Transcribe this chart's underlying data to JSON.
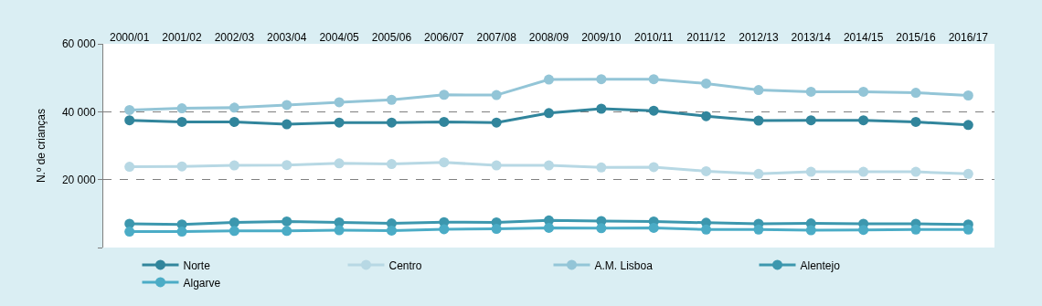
{
  "chart_data": {
    "type": "line",
    "ylabel": "N.º de crianças",
    "categories": [
      "2000/01",
      "2001/02",
      "2002/03",
      "2003/04",
      "2004/05",
      "2005/06",
      "2006/07",
      "2007/08",
      "2008/09",
      "2009/10",
      "2010/11",
      "2011/12",
      "2012/13",
      "2013/14",
      "2014/15",
      "2015/16",
      "2016/17"
    ],
    "series": [
      {
        "name": "Norte",
        "color": "#31859c",
        "values": [
          37500,
          37000,
          37000,
          36300,
          36800,
          36800,
          37000,
          36800,
          39600,
          40900,
          40300,
          38700,
          37400,
          37500,
          37500,
          37000,
          36100
        ]
      },
      {
        "name": "Centro",
        "color": "#b7d8e4",
        "values": [
          23800,
          23900,
          24200,
          24300,
          24800,
          24600,
          25100,
          24200,
          24200,
          23600,
          23700,
          22500,
          21700,
          22300,
          22300,
          22300,
          21700
        ]
      },
      {
        "name": "A.M. Lisboa",
        "color": "#93c5d7",
        "values": [
          40500,
          41000,
          41200,
          42000,
          42800,
          43500,
          45000,
          44900,
          49500,
          49600,
          49600,
          48300,
          46400,
          45900,
          45900,
          45600,
          44800
        ]
      },
      {
        "name": "Alentejo",
        "color": "#3c97ae",
        "values": [
          7000,
          6800,
          7400,
          7700,
          7400,
          7100,
          7500,
          7400,
          8000,
          7800,
          7700,
          7300,
          7000,
          7100,
          7000,
          7000,
          6800
        ]
      },
      {
        "name": "Algarve",
        "color": "#4bacc6",
        "values": [
          4700,
          4700,
          4900,
          4900,
          5100,
          5000,
          5400,
          5500,
          5800,
          5700,
          5800,
          5300,
          5300,
          5100,
          5200,
          5300,
          5300
        ]
      }
    ],
    "ylim": [
      0,
      60000
    ],
    "yticks": [
      {
        "value": 0,
        "label": null
      },
      {
        "value": 20000,
        "label": "20 000"
      },
      {
        "value": 40000,
        "label": "40 000"
      },
      {
        "value": 60000,
        "label": "60 000"
      }
    ],
    "grid": "y",
    "legend": "bottom",
    "marker": "circle",
    "line_style": "solid"
  }
}
